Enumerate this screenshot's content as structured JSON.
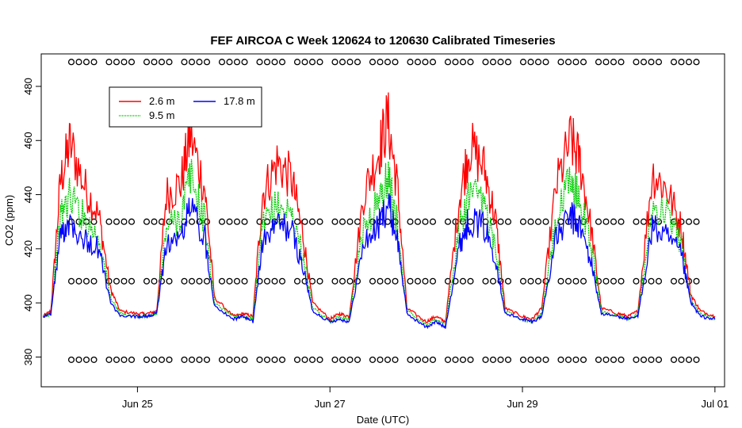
{
  "chart_data": {
    "type": "line",
    "title": "FEF AIRCOA C  Week 120624 to 120630  Calibrated Timeseries",
    "xlabel": "Date (UTC)",
    "ylabel": "CO2 (ppm)",
    "xlim": [
      24.0,
      31.1
    ],
    "ylim": [
      369,
      492
    ],
    "x_ticks": [
      {
        "value": 25,
        "label": "Jun 25"
      },
      {
        "value": 27,
        "label": "Jun 27"
      },
      {
        "value": 29,
        "label": "Jun 29"
      },
      {
        "value": 31,
        "label": "Jul 01"
      }
    ],
    "y_ticks": [
      {
        "value": 380,
        "label": "380"
      },
      {
        "value": 400,
        "label": "400"
      },
      {
        "value": 420,
        "label": "420"
      },
      {
        "value": 440,
        "label": "440"
      },
      {
        "value": 460,
        "label": "460"
      },
      {
        "value": 480,
        "label": "480"
      }
    ],
    "legend": {
      "placement": "top-left",
      "entries": [
        {
          "label": "2.6 m",
          "color": "#ff0000",
          "style": "solid"
        },
        {
          "label": "9.5 m",
          "color": "#00cc00",
          "style": "dotted"
        },
        {
          "label": "17.8 m",
          "color": "#0000ff",
          "style": "solid"
        }
      ]
    },
    "series": [
      {
        "name": "2.6 m",
        "color": "#ff0000",
        "x": [
          24.02,
          24.1,
          24.2,
          24.3,
          24.45,
          24.6,
          24.72,
          24.82,
          25.0,
          25.1,
          25.2,
          25.3,
          25.45,
          25.55,
          25.7,
          25.8,
          26.0,
          26.1,
          26.2,
          26.3,
          26.45,
          26.6,
          26.72,
          26.82,
          27.0,
          27.1,
          27.2,
          27.35,
          27.5,
          27.6,
          27.7,
          27.8,
          28.0,
          28.1,
          28.2,
          28.35,
          28.45,
          28.6,
          28.72,
          28.82,
          29.0,
          29.1,
          29.2,
          29.35,
          29.5,
          29.6,
          29.72,
          29.82,
          30.0,
          30.1,
          30.2,
          30.35,
          30.5,
          30.65,
          30.75,
          30.85,
          31.0
        ],
        "values": [
          395,
          397,
          445,
          459,
          443,
          432,
          405,
          397,
          396,
          396,
          397,
          440,
          444,
          462,
          442,
          402,
          395,
          396,
          395,
          440,
          452,
          446,
          425,
          400,
          394,
          396,
          395,
          440,
          455,
          468,
          443,
          398,
          393,
          395,
          393,
          440,
          458,
          450,
          431,
          398,
          395,
          394,
          398,
          443,
          460,
          452,
          426,
          398,
          396,
          395,
          397,
          448,
          442,
          428,
          403,
          397,
          395
        ]
      },
      {
        "name": "9.5 m",
        "color": "#00cc00",
        "x": [
          24.02,
          24.1,
          24.2,
          24.3,
          24.45,
          24.6,
          24.72,
          24.82,
          25.0,
          25.1,
          25.2,
          25.3,
          25.45,
          25.55,
          25.7,
          25.8,
          26.0,
          26.1,
          26.2,
          26.3,
          26.45,
          26.6,
          26.72,
          26.82,
          27.0,
          27.1,
          27.2,
          27.35,
          27.5,
          27.6,
          27.7,
          27.8,
          28.0,
          28.1,
          28.2,
          28.35,
          28.45,
          28.6,
          28.72,
          28.82,
          29.0,
          29.1,
          29.2,
          29.35,
          29.5,
          29.6,
          29.72,
          29.82,
          30.0,
          30.1,
          30.2,
          30.35,
          30.5,
          30.65,
          30.75,
          30.85,
          31.0
        ],
        "values": [
          395,
          396,
          432,
          440,
          431,
          424,
          402,
          396,
          395,
          395,
          396,
          428,
          432,
          447,
          430,
          400,
          395,
          395,
          394,
          428,
          436,
          433,
          418,
          398,
          393,
          395,
          394,
          428,
          437,
          446,
          429,
          397,
          392,
          394,
          392,
          428,
          440,
          436,
          422,
          397,
          394,
          393,
          396,
          430,
          445,
          438,
          420,
          397,
          395,
          394,
          396,
          436,
          433,
          422,
          401,
          396,
          394
        ]
      },
      {
        "name": "17.8 m",
        "color": "#0000ff",
        "x": [
          24.02,
          24.1,
          24.2,
          24.3,
          24.45,
          24.6,
          24.72,
          24.82,
          25.0,
          25.1,
          25.2,
          25.3,
          25.45,
          25.55,
          25.7,
          25.8,
          26.0,
          26.1,
          26.2,
          26.3,
          26.45,
          26.6,
          26.72,
          26.82,
          27.0,
          27.1,
          27.2,
          27.35,
          27.5,
          27.6,
          27.7,
          27.8,
          28.0,
          28.1,
          28.2,
          28.35,
          28.45,
          28.6,
          28.72,
          28.82,
          29.0,
          29.1,
          29.2,
          29.35,
          29.5,
          29.6,
          29.72,
          29.82,
          30.0,
          30.1,
          30.2,
          30.35,
          30.5,
          30.65,
          30.75,
          30.85,
          31.0
        ],
        "values": [
          395,
          396,
          425,
          431,
          423,
          420,
          400,
          395,
          395,
          395,
          396,
          422,
          424,
          436,
          424,
          399,
          394,
          395,
          393,
          422,
          429,
          427,
          413,
          397,
          393,
          394,
          393,
          422,
          428,
          437,
          424,
          396,
          391,
          393,
          391,
          422,
          431,
          428,
          417,
          396,
          394,
          393,
          395,
          424,
          432,
          428,
          414,
          396,
          395,
          394,
          395,
          428,
          424,
          418,
          400,
          395,
          394
        ]
      }
    ],
    "flag_rows": [
      {
        "y": 489,
        "marker": "o"
      },
      {
        "y": 430,
        "marker": "o"
      },
      {
        "y": 408,
        "marker": "o"
      },
      {
        "y": 379,
        "marker": "o"
      }
    ]
  }
}
